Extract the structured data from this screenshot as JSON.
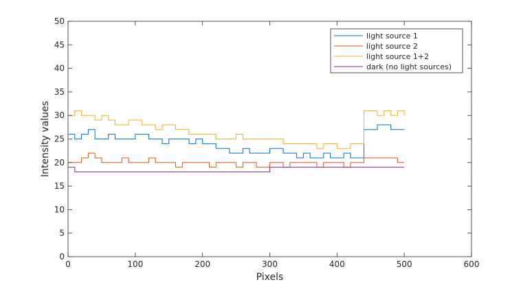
{
  "chart_data": {
    "type": "line",
    "title": "",
    "xlabel": "Pixels",
    "ylabel": "Intensity values",
    "xlim": [
      0,
      600
    ],
    "ylim": [
      0,
      50
    ],
    "xticks": [
      0,
      100,
      200,
      300,
      400,
      500,
      600
    ],
    "yticks": [
      0,
      5,
      10,
      15,
      20,
      25,
      30,
      35,
      40,
      45,
      50
    ],
    "grid": false,
    "legend_position": "top-right",
    "x": [
      0,
      10,
      20,
      30,
      40,
      50,
      60,
      70,
      80,
      90,
      100,
      110,
      120,
      130,
      140,
      150,
      160,
      170,
      180,
      190,
      200,
      210,
      220,
      230,
      240,
      250,
      260,
      270,
      280,
      290,
      300,
      310,
      320,
      330,
      340,
      350,
      360,
      370,
      380,
      390,
      400,
      410,
      420,
      430,
      440,
      450,
      460,
      470,
      480,
      490,
      500
    ],
    "series": [
      {
        "name": "light source 1",
        "color": "#0072BD",
        "values": [
          26,
          25,
          26,
          27,
          25,
          25,
          26,
          25,
          25,
          25,
          26,
          26,
          25,
          25,
          24,
          25,
          25,
          25,
          24,
          25,
          24,
          24,
          23,
          23,
          22,
          22,
          23,
          22,
          22,
          22,
          23,
          23,
          22,
          22,
          21,
          22,
          21,
          21,
          22,
          21,
          21,
          22,
          21,
          21,
          27,
          27,
          28,
          28,
          27,
          27,
          27
        ]
      },
      {
        "name": "light source 2",
        "color": "#D95319",
        "values": [
          20,
          20,
          21,
          22,
          21,
          20,
          20,
          20,
          21,
          20,
          20,
          20,
          21,
          20,
          20,
          20,
          19,
          20,
          20,
          20,
          20,
          19,
          20,
          20,
          20,
          19,
          20,
          20,
          19,
          19,
          20,
          20,
          19,
          20,
          20,
          20,
          20,
          19,
          20,
          20,
          20,
          19,
          20,
          20,
          21,
          21,
          21,
          21,
          21,
          20,
          20
        ]
      },
      {
        "name": "light source 1+2",
        "color": "#EDB120",
        "values": [
          30,
          31,
          30,
          30,
          29,
          30,
          29,
          28,
          28,
          29,
          29,
          28,
          28,
          27,
          28,
          28,
          27,
          27,
          26,
          26,
          26,
          26,
          25,
          25,
          25,
          26,
          25,
          25,
          25,
          25,
          25,
          25,
          24,
          24,
          24,
          24,
          24,
          23,
          24,
          24,
          23,
          23,
          24,
          24,
          31,
          31,
          30,
          31,
          30,
          31,
          30
        ]
      },
      {
        "name": "dark (no light sources)",
        "color": "#7E2F8E",
        "values": [
          19,
          18,
          18,
          18,
          18,
          18,
          18,
          18,
          18,
          18,
          18,
          18,
          18,
          18,
          18,
          18,
          18,
          18,
          18,
          18,
          18,
          18,
          18,
          18,
          18,
          18,
          18,
          18,
          18,
          18,
          19,
          19,
          19,
          19,
          19,
          19,
          19,
          19,
          19,
          19,
          19,
          19,
          19,
          19,
          19,
          19,
          19,
          19,
          19,
          19,
          19
        ]
      }
    ]
  }
}
